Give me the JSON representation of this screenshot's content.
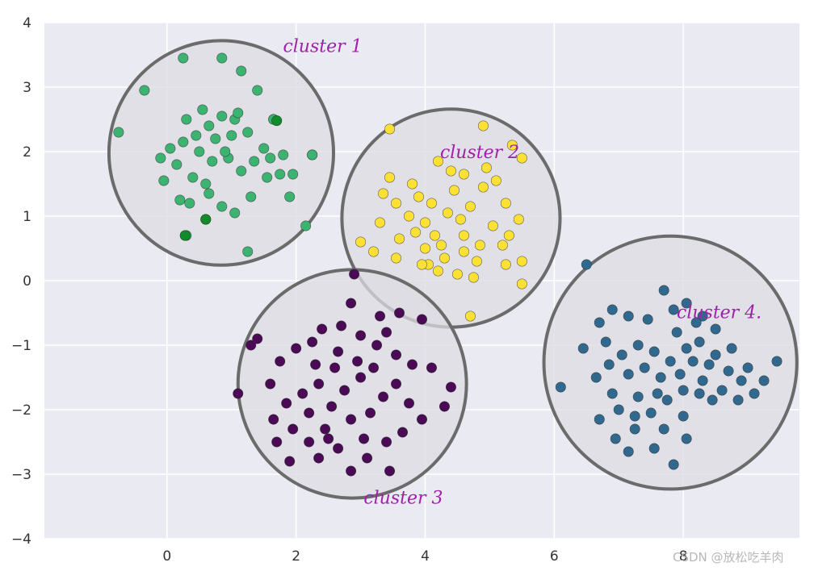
{
  "chart_data": {
    "type": "scatter",
    "title": "",
    "xlabel": "",
    "ylabel": "",
    "xlim": [
      -1.9,
      9.8
    ],
    "ylim": [
      -4,
      4
    ],
    "grid": true,
    "xticks": [
      0,
      2,
      4,
      6,
      8
    ],
    "yticks": [
      4,
      3,
      2,
      1,
      0,
      -1,
      -2,
      -3,
      -4
    ],
    "xtick_labels": [
      "0",
      "2",
      "4",
      "6",
      "8"
    ],
    "ytick_labels": [
      "4",
      "3",
      "2",
      "1",
      "0",
      "−1",
      "−2",
      "−3",
      "−4"
    ],
    "colors": {
      "background": "#eaeaf2",
      "grid": "#ffffff",
      "circle_fill": "#dcdce2",
      "circle_stroke": "#6b6b6b",
      "annotation": "#a020a8"
    },
    "series": [
      {
        "name": "cluster 1",
        "color": "#3cb371",
        "center": [
          0.84,
          1.98
        ],
        "radius": 1.74,
        "points": [
          [
            -0.75,
            2.3
          ],
          [
            -0.35,
            2.95
          ],
          [
            0.25,
            3.45
          ],
          [
            0.85,
            3.45
          ],
          [
            1.15,
            3.25
          ],
          [
            1.4,
            2.95
          ],
          [
            1.65,
            2.5
          ],
          [
            2.25,
            1.95
          ],
          [
            2.15,
            0.85
          ],
          [
            1.25,
            0.45
          ],
          [
            0.6,
            0.95
          ],
          [
            0.3,
            0.7
          ],
          [
            -0.1,
            1.9
          ],
          [
            -0.05,
            1.55
          ],
          [
            0.2,
            1.25
          ],
          [
            0.45,
            2.25
          ],
          [
            0.65,
            2.4
          ],
          [
            0.85,
            2.55
          ],
          [
            1.05,
            2.5
          ],
          [
            1.25,
            2.3
          ],
          [
            1.5,
            2.05
          ],
          [
            1.75,
            1.65
          ],
          [
            1.95,
            1.65
          ],
          [
            1.9,
            1.3
          ],
          [
            1.55,
            1.6
          ],
          [
            1.3,
            1.3
          ],
          [
            1.05,
            1.05
          ],
          [
            0.85,
            1.15
          ],
          [
            0.65,
            1.35
          ],
          [
            0.4,
            1.6
          ],
          [
            0.15,
            1.8
          ],
          [
            0.05,
            2.05
          ],
          [
            0.3,
            2.5
          ],
          [
            0.55,
            2.65
          ],
          [
            0.75,
            2.2
          ],
          [
            0.95,
            1.9
          ],
          [
            1.15,
            1.7
          ],
          [
            1.35,
            1.85
          ],
          [
            1.6,
            1.9
          ],
          [
            1.8,
            1.95
          ],
          [
            1.0,
            2.25
          ],
          [
            0.7,
            1.85
          ],
          [
            0.5,
            2.0
          ],
          [
            0.25,
            2.15
          ],
          [
            1.65,
            2.5
          ],
          [
            2.25,
            1.95
          ],
          [
            1.1,
            2.6
          ],
          [
            0.9,
            2.0
          ],
          [
            0.6,
            1.5
          ],
          [
            0.35,
            1.2
          ]
        ],
        "dark_points": [
          [
            1.7,
            2.48
          ],
          [
            0.6,
            0.95
          ],
          [
            0.28,
            0.7
          ]
        ]
      },
      {
        "name": "cluster 2",
        "color": "#ffe135",
        "center": [
          4.4,
          0.97
        ],
        "radius": 1.69,
        "points": [
          [
            3.45,
            2.35
          ],
          [
            4.9,
            2.4
          ],
          [
            5.35,
            2.1
          ],
          [
            5.5,
            1.9
          ],
          [
            3.45,
            1.6
          ],
          [
            3.35,
            1.35
          ],
          [
            3.0,
            0.6
          ],
          [
            3.2,
            0.45
          ],
          [
            3.55,
            0.35
          ],
          [
            4.05,
            0.25
          ],
          [
            4.5,
            0.1
          ],
          [
            5.25,
            0.25
          ],
          [
            5.5,
            0.3
          ],
          [
            5.5,
            -0.05
          ],
          [
            4.7,
            -0.55
          ],
          [
            3.8,
            1.5
          ],
          [
            4.2,
            1.85
          ],
          [
            4.6,
            1.65
          ],
          [
            4.9,
            1.45
          ],
          [
            5.25,
            1.2
          ],
          [
            5.45,
            0.95
          ],
          [
            4.0,
            0.9
          ],
          [
            4.35,
            1.05
          ],
          [
            4.6,
            0.7
          ],
          [
            4.85,
            0.55
          ],
          [
            4.25,
            0.55
          ],
          [
            3.95,
            0.25
          ],
          [
            4.1,
            1.2
          ],
          [
            3.75,
            1.0
          ],
          [
            3.6,
            0.65
          ],
          [
            4.45,
            1.4
          ],
          [
            4.7,
            1.15
          ],
          [
            5.05,
            0.85
          ],
          [
            5.2,
            0.55
          ],
          [
            4.3,
            0.35
          ],
          [
            3.85,
            0.75
          ],
          [
            4.55,
            0.95
          ],
          [
            4.15,
            0.7
          ],
          [
            3.9,
            1.3
          ],
          [
            4.8,
            0.3
          ],
          [
            4.4,
            1.7
          ],
          [
            4.95,
            1.75
          ],
          [
            3.55,
            1.2
          ],
          [
            5.3,
            0.7
          ],
          [
            4.6,
            0.45
          ],
          [
            4.0,
            0.5
          ],
          [
            5.1,
            1.55
          ],
          [
            3.3,
            0.9
          ],
          [
            4.2,
            0.15
          ],
          [
            4.75,
            0.05
          ]
        ],
        "dark_points": []
      },
      {
        "name": "cluster 3",
        "color": "#4a0a55",
        "center": [
          2.87,
          -1.6
        ],
        "radius": 1.77,
        "points": [
          [
            2.9,
            0.1
          ],
          [
            2.85,
            -0.35
          ],
          [
            3.3,
            -0.55
          ],
          [
            3.6,
            -0.5
          ],
          [
            3.95,
            -0.6
          ],
          [
            1.4,
            -0.9
          ],
          [
            1.3,
            -1.0
          ],
          [
            1.1,
            -1.75
          ],
          [
            1.6,
            -1.6
          ],
          [
            1.75,
            -1.25
          ],
          [
            2.0,
            -1.05
          ],
          [
            2.25,
            -0.95
          ],
          [
            2.4,
            -0.75
          ],
          [
            2.7,
            -0.7
          ],
          [
            3.0,
            -0.85
          ],
          [
            3.25,
            -1.0
          ],
          [
            3.55,
            -1.15
          ],
          [
            3.8,
            -1.3
          ],
          [
            4.1,
            -1.35
          ],
          [
            4.4,
            -1.65
          ],
          [
            4.3,
            -1.95
          ],
          [
            3.95,
            -2.15
          ],
          [
            3.65,
            -2.35
          ],
          [
            3.4,
            -2.5
          ],
          [
            3.1,
            -2.75
          ],
          [
            2.85,
            -2.95
          ],
          [
            3.45,
            -2.95
          ],
          [
            2.65,
            -2.6
          ],
          [
            2.45,
            -2.3
          ],
          [
            2.2,
            -2.05
          ],
          [
            1.95,
            -2.3
          ],
          [
            1.7,
            -2.5
          ],
          [
            1.9,
            -2.8
          ],
          [
            2.35,
            -2.75
          ],
          [
            2.55,
            -1.95
          ],
          [
            2.75,
            -1.7
          ],
          [
            3.0,
            -1.5
          ],
          [
            3.2,
            -1.35
          ],
          [
            2.6,
            -1.35
          ],
          [
            2.35,
            -1.6
          ],
          [
            2.1,
            -1.75
          ],
          [
            2.85,
            -2.15
          ],
          [
            3.15,
            -2.05
          ],
          [
            3.35,
            -1.8
          ],
          [
            3.55,
            -1.6
          ],
          [
            2.65,
            -1.1
          ],
          [
            2.95,
            -1.25
          ],
          [
            3.4,
            -0.8
          ],
          [
            2.3,
            -1.3
          ],
          [
            1.85,
            -1.9
          ],
          [
            2.5,
            -2.45
          ],
          [
            3.05,
            -2.45
          ],
          [
            1.65,
            -2.15
          ],
          [
            2.2,
            -2.5
          ],
          [
            3.75,
            -1.9
          ]
        ],
        "dark_points": []
      },
      {
        "name": "cluster 4",
        "color": "#31688e",
        "center": [
          7.8,
          -1.27
        ],
        "radius": 1.96,
        "points": [
          [
            6.5,
            0.25
          ],
          [
            6.1,
            -1.65
          ],
          [
            6.45,
            -1.05
          ],
          [
            6.7,
            -0.65
          ],
          [
            6.9,
            -0.45
          ],
          [
            7.15,
            -0.55
          ],
          [
            7.45,
            -0.6
          ],
          [
            7.7,
            -0.15
          ],
          [
            7.85,
            -0.45
          ],
          [
            8.05,
            -0.35
          ],
          [
            8.3,
            -0.55
          ],
          [
            8.5,
            -0.75
          ],
          [
            8.75,
            -1.05
          ],
          [
            9.0,
            -1.35
          ],
          [
            9.25,
            -1.55
          ],
          [
            9.45,
            -1.25
          ],
          [
            9.1,
            -1.75
          ],
          [
            8.85,
            -1.85
          ],
          [
            8.6,
            -1.7
          ],
          [
            8.3,
            -1.55
          ],
          [
            8.0,
            -1.7
          ],
          [
            7.75,
            -1.85
          ],
          [
            7.5,
            -2.05
          ],
          [
            7.25,
            -2.3
          ],
          [
            6.95,
            -2.45
          ],
          [
            7.15,
            -2.65
          ],
          [
            7.55,
            -2.6
          ],
          [
            7.85,
            -2.85
          ],
          [
            8.05,
            -2.45
          ],
          [
            6.65,
            -1.5
          ],
          [
            6.85,
            -1.3
          ],
          [
            7.05,
            -1.15
          ],
          [
            7.3,
            -1.0
          ],
          [
            7.55,
            -1.1
          ],
          [
            7.8,
            -1.25
          ],
          [
            8.05,
            -1.05
          ],
          [
            8.25,
            -0.95
          ],
          [
            8.5,
            -1.15
          ],
          [
            8.7,
            -1.4
          ],
          [
            8.4,
            -1.3
          ],
          [
            8.15,
            -1.25
          ],
          [
            7.95,
            -1.45
          ],
          [
            7.65,
            -1.5
          ],
          [
            7.4,
            -1.35
          ],
          [
            7.15,
            -1.45
          ],
          [
            6.9,
            -1.75
          ],
          [
            7.3,
            -1.8
          ],
          [
            7.6,
            -1.75
          ],
          [
            7.9,
            -0.8
          ],
          [
            8.2,
            -0.65
          ],
          [
            8.45,
            -1.85
          ],
          [
            6.7,
            -2.15
          ],
          [
            7.0,
            -2.0
          ],
          [
            8.9,
            -1.55
          ],
          [
            6.8,
            -0.95
          ],
          [
            7.25,
            -2.1
          ],
          [
            7.7,
            -2.3
          ],
          [
            8.0,
            -2.1
          ],
          [
            8.25,
            -1.75
          ]
        ],
        "dark_points": []
      }
    ],
    "annotations": [
      {
        "text": "cluster 1",
        "series": 0
      },
      {
        "text": "cluster 2",
        "series": 1
      },
      {
        "text": "cluster 3",
        "series": 2
      },
      {
        "text": "cluster 4.",
        "series": 3
      }
    ]
  },
  "watermark": "CSDN @放松吃羊肉"
}
